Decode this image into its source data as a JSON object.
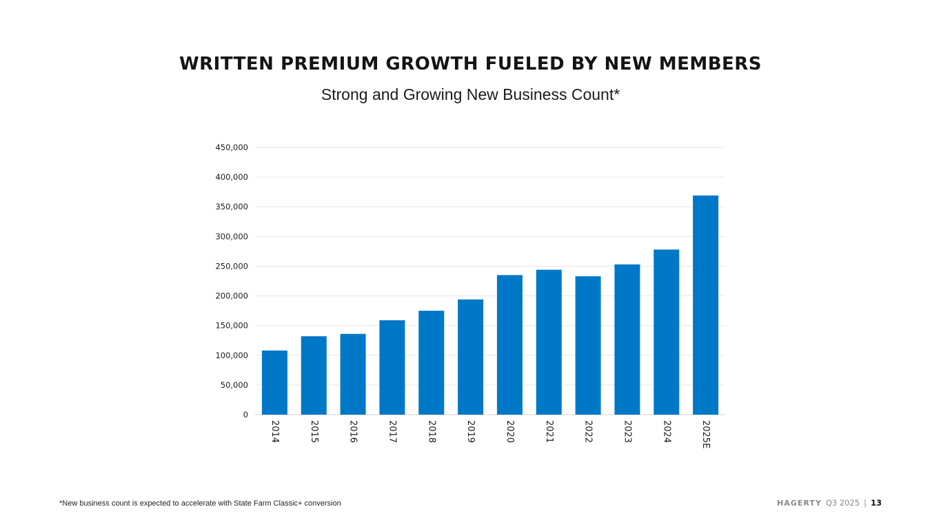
{
  "title": "WRITTEN PREMIUM GROWTH FUELED BY NEW MEMBERS",
  "subtitle": "Strong and Growing New Business Count*",
  "footnote": "*New business count is expected to accelerate with State Farm Classic+ conversion",
  "footer": {
    "brand": "HAGERTY",
    "quarter": "Q3 2025",
    "separator": "|",
    "page": "13"
  },
  "colors": {
    "bar": "#0078C8",
    "grid": "#E6E6E6"
  },
  "chart_data": {
    "type": "bar",
    "categories": [
      "2014",
      "2015",
      "2016",
      "2017",
      "2018",
      "2019",
      "2020",
      "2021",
      "2022",
      "2023",
      "2024",
      "2025E"
    ],
    "values": [
      108000,
      132000,
      136000,
      159000,
      175000,
      194000,
      235000,
      244000,
      233000,
      253000,
      278000,
      369000
    ],
    "yticks": [
      "0",
      "50,000",
      "100,000",
      "150,000",
      "200,000",
      "250,000",
      "300,000",
      "350,000",
      "400,000",
      "450,000"
    ],
    "ylim": [
      0,
      450000
    ],
    "grid": true
  }
}
